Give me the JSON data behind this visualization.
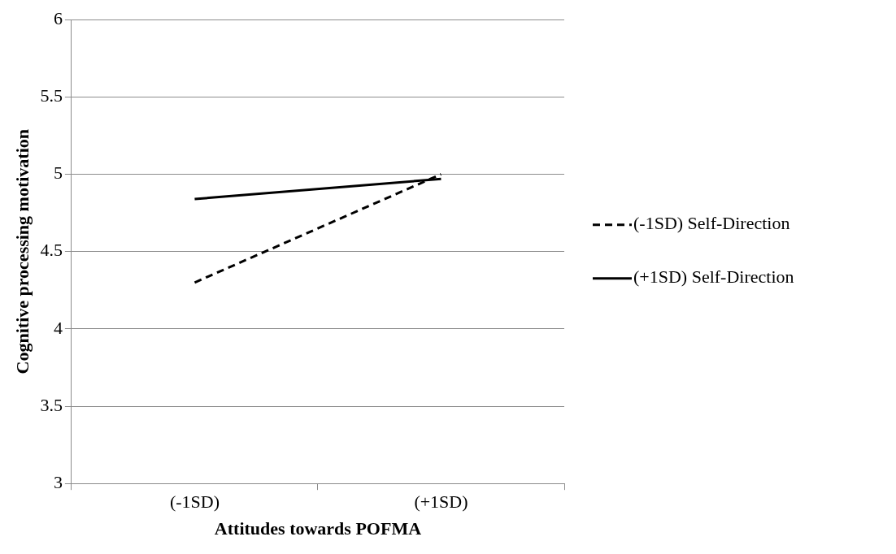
{
  "chart_data": {
    "type": "line",
    "xlabel": "Attitudes towards POFMA",
    "ylabel": "Cognitive processing motivation",
    "categories": [
      "(-1SD)",
      "(+1SD)"
    ],
    "series": [
      {
        "name": "(-1SD) Self-Direction",
        "color": "#000000",
        "values": [
          4.3,
          5.0
        ],
        "line_style": "dashed"
      },
      {
        "name": "(+1SD) Self-Direction",
        "color": "#000000",
        "values": [
          4.84,
          4.97
        ],
        "line_style": "solid"
      }
    ],
    "ylim": [
      3,
      6
    ],
    "yticks": [
      3,
      3.5,
      4,
      4.5,
      5,
      5.5,
      6
    ],
    "grid": "y",
    "legend": "right",
    "marker": "none"
  }
}
